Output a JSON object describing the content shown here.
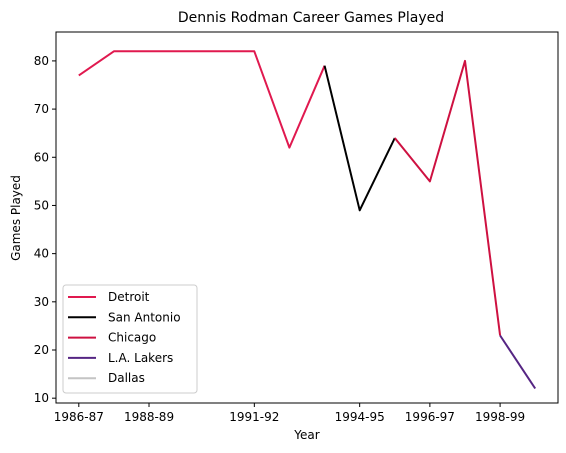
{
  "chart_data": {
    "type": "line",
    "title": "Dennis Rodman Career Games Played",
    "xlabel": "Year",
    "ylabel": "Games Played",
    "categories": [
      "1986-87",
      "1987-88",
      "1988-89",
      "1989-90",
      "1990-91",
      "1991-92",
      "1992-93",
      "1993-94",
      "1994-95",
      "1995-96",
      "1996-97",
      "1997-98",
      "1998-99",
      "1999-00"
    ],
    "x_tick_labels": [
      "1986-87",
      "1988-89",
      "1991-92",
      "1994-95",
      "1996-97",
      "1998-99"
    ],
    "ylim": [
      9,
      86
    ],
    "yticks": [
      10,
      20,
      30,
      40,
      50,
      60,
      70,
      80
    ],
    "series": [
      {
        "name": "Detroit",
        "color": "#e0194f",
        "points": [
          [
            "1986-87",
            77
          ],
          [
            "1987-88",
            82
          ],
          [
            "1988-89",
            82
          ],
          [
            "1989-90",
            82
          ],
          [
            "1990-91",
            82
          ],
          [
            "1991-92",
            82
          ],
          [
            "1992-93",
            62
          ],
          [
            "1993-94",
            79
          ]
        ]
      },
      {
        "name": "San Antonio",
        "color": "#000000",
        "points": [
          [
            "1993-94",
            79
          ],
          [
            "1994-95",
            49
          ],
          [
            "1995-96",
            64
          ]
        ]
      },
      {
        "name": "Chicago",
        "color": "#ce1141",
        "points": [
          [
            "1995-96",
            64
          ],
          [
            "1996-97",
            55
          ],
          [
            "1997-98",
            80
          ],
          [
            "1998-99",
            23
          ]
        ]
      },
      {
        "name": "L.A. Lakers",
        "color": "#552583",
        "points": [
          [
            "1998-99",
            23
          ],
          [
            "1999-00",
            12
          ]
        ]
      },
      {
        "name": "Dallas",
        "color": "#c4c4c4",
        "points": []
      }
    ],
    "legend": "lower-left",
    "grid": false
  }
}
